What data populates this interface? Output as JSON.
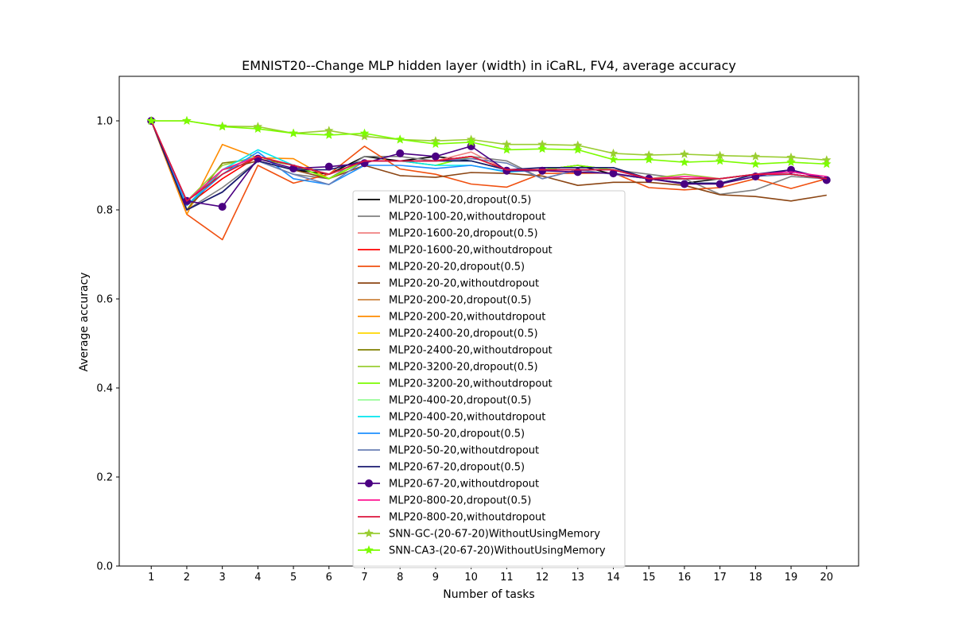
{
  "chart_data": {
    "type": "line",
    "title": "EMNIST20--Change MLP hidden layer (width) in iCaRL, FV4, average accuracy",
    "xlabel": "Number of tasks",
    "ylabel": "Average accuracy",
    "x": [
      1,
      2,
      3,
      4,
      5,
      6,
      7,
      8,
      9,
      10,
      11,
      12,
      13,
      14,
      15,
      16,
      17,
      18,
      19,
      20
    ],
    "xlim": [
      0.1,
      20.9
    ],
    "ylim": [
      0.0,
      1.1
    ],
    "xticks": [
      "1",
      "2",
      "3",
      "4",
      "5",
      "6",
      "7",
      "8",
      "9",
      "10",
      "11",
      "12",
      "13",
      "14",
      "15",
      "16",
      "17",
      "18",
      "19",
      "20"
    ],
    "yticks": [
      "0.0",
      "0.2",
      "0.4",
      "0.6",
      "0.8",
      "1.0"
    ],
    "legend_position": "lower-center",
    "grid": false,
    "series": [
      {
        "name": "MLP20-100-20,dropout(0.5)",
        "color": "#000000",
        "marker": "none",
        "values": [
          1.0,
          0.8,
          0.84,
          0.91,
          0.89,
          0.88,
          0.92,
          0.91,
          0.92,
          0.91,
          0.89,
          0.89,
          0.9,
          0.88,
          0.87,
          0.86,
          0.87,
          0.88,
          0.88,
          0.87
        ]
      },
      {
        "name": "MLP20-100-20,withoutdropout",
        "color": "#808080",
        "marker": "none",
        "values": [
          1.0,
          0.8,
          0.85,
          0.91,
          0.88,
          0.87,
          0.92,
          0.92,
          0.91,
          0.92,
          0.91,
          0.87,
          0.89,
          0.89,
          0.88,
          0.87,
          0.835,
          0.845,
          0.875,
          0.87
        ]
      },
      {
        "name": "MLP20-1600-20,dropout(0.5)",
        "color": "#f08080",
        "marker": "none",
        "values": [
          1.0,
          0.81,
          0.88,
          0.92,
          0.9,
          0.88,
          0.91,
          0.91,
          0.91,
          0.93,
          0.89,
          0.89,
          0.89,
          0.89,
          0.87,
          0.87,
          0.87,
          0.88,
          0.88,
          0.87
        ]
      },
      {
        "name": "MLP20-1600-20,withoutdropout",
        "color": "#ff0000",
        "marker": "none",
        "values": [
          1.0,
          0.81,
          0.87,
          0.92,
          0.9,
          0.88,
          0.91,
          0.91,
          0.91,
          0.92,
          0.89,
          0.89,
          0.89,
          0.89,
          0.87,
          0.87,
          0.87,
          0.88,
          0.88,
          0.87
        ]
      },
      {
        "name": "MLP20-20-20,dropout(0.5)",
        "color": "#f05010",
        "marker": "none",
        "values": [
          1.0,
          0.79,
          0.733,
          0.9,
          0.86,
          0.88,
          0.943,
          0.892,
          0.88,
          0.858,
          0.851,
          0.882,
          0.882,
          0.883,
          0.85,
          0.845,
          0.85,
          0.87,
          0.848,
          0.87
        ]
      },
      {
        "name": "MLP20-20-20,withoutdropout",
        "color": "#8b4513",
        "marker": "none",
        "values": [
          1.0,
          0.8,
          0.89,
          0.91,
          0.89,
          0.87,
          0.9,
          0.877,
          0.873,
          0.884,
          0.882,
          0.876,
          0.855,
          0.862,
          0.862,
          0.855,
          0.834,
          0.83,
          0.82,
          0.833
        ]
      },
      {
        "name": "MLP20-200-20,dropout(0.5)",
        "color": "#cd853f",
        "marker": "none",
        "values": [
          1.0,
          0.81,
          0.89,
          0.92,
          0.9,
          0.88,
          0.91,
          0.91,
          0.91,
          0.92,
          0.89,
          0.89,
          0.9,
          0.89,
          0.87,
          0.87,
          0.87,
          0.88,
          0.88,
          0.87
        ]
      },
      {
        "name": "MLP20-200-20,withoutdropout",
        "color": "#ff8c00",
        "marker": "none",
        "values": [
          1.0,
          0.79,
          0.947,
          0.917,
          0.915,
          0.87,
          0.91,
          0.91,
          0.91,
          0.92,
          0.89,
          0.89,
          0.89,
          0.89,
          0.87,
          0.87,
          0.87,
          0.88,
          0.88,
          0.87
        ]
      },
      {
        "name": "MLP20-2400-20,dropout(0.5)",
        "color": "#ffd700",
        "marker": "none",
        "values": [
          1.0,
          0.81,
          0.89,
          0.92,
          0.9,
          0.88,
          0.91,
          0.91,
          0.91,
          0.92,
          0.89,
          0.89,
          0.89,
          0.89,
          0.87,
          0.87,
          0.87,
          0.88,
          0.88,
          0.87
        ]
      },
      {
        "name": "MLP20-2400-20,withoutdropout",
        "color": "#808000",
        "marker": "none",
        "values": [
          1.0,
          0.8,
          0.905,
          0.915,
          0.9,
          0.88,
          0.91,
          0.91,
          0.91,
          0.92,
          0.89,
          0.89,
          0.89,
          0.89,
          0.87,
          0.87,
          0.87,
          0.88,
          0.88,
          0.87
        ]
      },
      {
        "name": "MLP20-3200-20,dropout(0.5)",
        "color": "#9acd32",
        "marker": "none",
        "values": [
          1.0,
          0.82,
          0.9,
          0.92,
          0.9,
          0.87,
          0.91,
          0.91,
          0.9,
          0.92,
          0.89,
          0.89,
          0.9,
          0.89,
          0.87,
          0.88,
          0.87,
          0.88,
          0.88,
          0.87
        ]
      },
      {
        "name": "MLP20-3200-20,withoutdropout",
        "color": "#7cfc00",
        "marker": "none",
        "values": [
          1.0,
          0.82,
          0.89,
          0.92,
          0.9,
          0.87,
          0.91,
          0.91,
          0.9,
          0.92,
          0.89,
          0.89,
          0.9,
          0.89,
          0.87,
          0.87,
          0.87,
          0.88,
          0.88,
          0.87
        ]
      },
      {
        "name": "MLP20-400-20,dropout(0.5)",
        "color": "#98fb98",
        "marker": "none",
        "values": [
          1.0,
          0.81,
          0.88,
          0.92,
          0.9,
          0.88,
          0.91,
          0.91,
          0.91,
          0.91,
          0.89,
          0.89,
          0.89,
          0.89,
          0.87,
          0.87,
          0.87,
          0.88,
          0.88,
          0.87
        ]
      },
      {
        "name": "MLP20-400-20,withoutdropout",
        "color": "#00e5ee",
        "marker": "none",
        "values": [
          1.0,
          0.81,
          0.89,
          0.935,
          0.9,
          0.88,
          0.91,
          0.91,
          0.9,
          0.9,
          0.885,
          0.89,
          0.89,
          0.89,
          0.87,
          0.87,
          0.87,
          0.88,
          0.88,
          0.87
        ]
      },
      {
        "name": "MLP20-50-20,dropout(0.5)",
        "color": "#1e90ff",
        "marker": "none",
        "values": [
          1.0,
          0.81,
          0.88,
          0.93,
          0.87,
          0.857,
          0.9,
          0.9,
          0.893,
          0.9,
          0.886,
          0.89,
          0.89,
          0.89,
          0.87,
          0.87,
          0.87,
          0.88,
          0.88,
          0.87
        ]
      },
      {
        "name": "MLP20-50-20,withoutdropout",
        "color": "#6a7fb5",
        "marker": "none",
        "values": [
          1.0,
          0.8,
          0.84,
          0.91,
          0.88,
          0.857,
          0.91,
          0.91,
          0.91,
          0.915,
          0.905,
          0.87,
          0.89,
          0.88,
          0.87,
          0.86,
          0.86,
          0.875,
          0.88,
          0.87
        ]
      },
      {
        "name": "MLP20-67-20,dropout(0.5)",
        "color": "#191970",
        "marker": "none",
        "values": [
          1.0,
          0.8,
          0.84,
          0.91,
          0.89,
          0.89,
          0.91,
          0.91,
          0.91,
          0.91,
          0.89,
          0.895,
          0.895,
          0.895,
          0.87,
          0.86,
          0.86,
          0.88,
          0.89,
          0.87
        ]
      },
      {
        "name": "MLP20-67-20,withoutdropout",
        "color": "#4b0082",
        "marker": "circle",
        "values": [
          1.0,
          0.82,
          0.807,
          0.915,
          0.893,
          0.897,
          0.905,
          0.927,
          0.92,
          0.943,
          0.888,
          0.888,
          0.885,
          0.882,
          0.87,
          0.858,
          0.858,
          0.875,
          0.89,
          0.867
        ]
      },
      {
        "name": "MLP20-800-20,dropout(0.5)",
        "color": "#ff1493",
        "marker": "none",
        "values": [
          1.0,
          0.82,
          0.89,
          0.92,
          0.9,
          0.88,
          0.91,
          0.91,
          0.91,
          0.92,
          0.89,
          0.89,
          0.89,
          0.89,
          0.87,
          0.875,
          0.87,
          0.88,
          0.885,
          0.875
        ]
      },
      {
        "name": "MLP20-800-20,withoutdropout",
        "color": "#dc143c",
        "marker": "none",
        "values": [
          1.0,
          0.82,
          0.88,
          0.92,
          0.9,
          0.88,
          0.91,
          0.91,
          0.91,
          0.92,
          0.89,
          0.89,
          0.89,
          0.89,
          0.87,
          0.87,
          0.87,
          0.88,
          0.88,
          0.87
        ]
      },
      {
        "name": "SNN-GC-(20-67-20)WithoutUsingMemory",
        "color": "#9acd32",
        "marker": "star",
        "values": [
          1.0,
          1.0,
          0.988,
          0.987,
          0.972,
          0.978,
          0.965,
          0.958,
          0.955,
          0.958,
          0.947,
          0.947,
          0.945,
          0.927,
          0.923,
          0.925,
          0.922,
          0.92,
          0.918,
          0.912
        ]
      },
      {
        "name": "SNN-CA3-(20-67-20)WithoutUsingMemory",
        "color": "#7cfc00",
        "marker": "star",
        "values": [
          1.0,
          1.0,
          0.987,
          0.982,
          0.972,
          0.968,
          0.972,
          0.958,
          0.948,
          0.952,
          0.935,
          0.937,
          0.935,
          0.913,
          0.913,
          0.907,
          0.91,
          0.903,
          0.907,
          0.903
        ]
      }
    ]
  }
}
